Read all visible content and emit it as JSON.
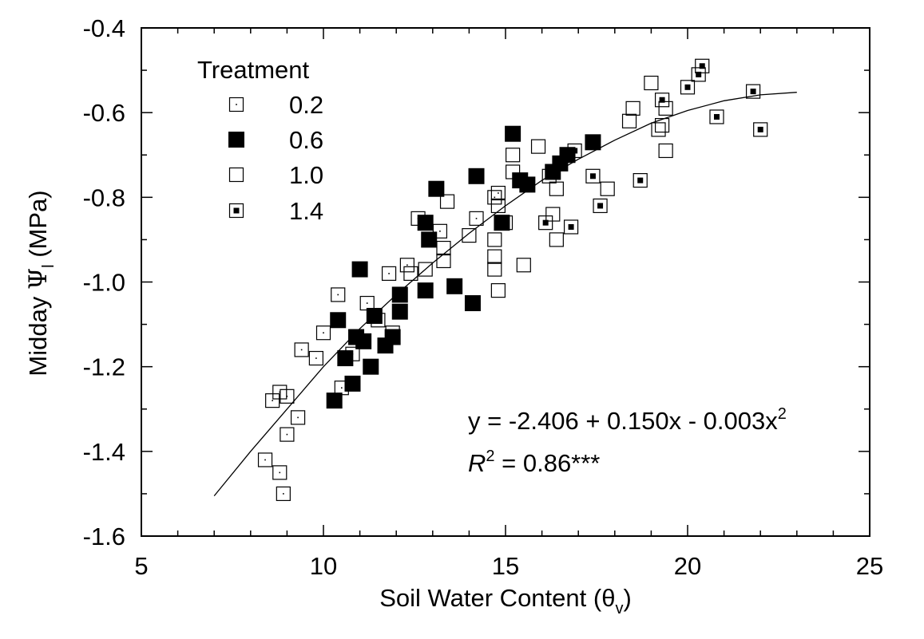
{
  "chart_data": {
    "type": "scatter",
    "xlabel": "Soil Water Content (θv)",
    "xlabel_main": "Soil Water Content (θ",
    "xlabel_sub": "v",
    "xlabel_close": ")",
    "ylabel": "Midday Ψl (MPa)",
    "ylabel_main": "Midday ",
    "ylabel_psi": "Ψ",
    "ylabel_sub": "l",
    "ylabel_unit": " (MPa)",
    "xlim": [
      5,
      25
    ],
    "ylim": [
      -1.6,
      -0.4
    ],
    "x_ticks": [
      5,
      10,
      15,
      20,
      25
    ],
    "x_tick_labels": [
      "5",
      "10",
      "15",
      "20",
      "25"
    ],
    "y_ticks": [
      -1.6,
      -1.4,
      -1.2,
      -1.0,
      -0.8,
      -0.6,
      -0.4
    ],
    "y_tick_labels": [
      "-1.6",
      "-1.4",
      "-1.2",
      "-1.0",
      "-0.8",
      "-0.6",
      "-0.4"
    ],
    "legend_title": "Treatment",
    "legend_position": "top-left",
    "fit": {
      "equation_prefix": "y = -2.406 + 0.150x - 0.003x",
      "equation_sup": "2",
      "r2_letter": "R",
      "r2_sup": "2",
      "r2_value": " = 0.86***",
      "coefficients": [
        -2.406,
        0.15,
        -0.003
      ],
      "x_range": [
        7.0,
        23.0
      ],
      "curve": [
        [
          7.0,
          -1.505
        ],
        [
          8.0,
          -1.4
        ],
        [
          9.0,
          -1.3
        ],
        [
          10.0,
          -1.2
        ],
        [
          11.0,
          -1.11
        ],
        [
          12.0,
          -1.03
        ],
        [
          13.0,
          -0.955
        ],
        [
          14.0,
          -0.885
        ],
        [
          15.0,
          -0.82
        ],
        [
          16.0,
          -0.76
        ],
        [
          17.0,
          -0.71
        ],
        [
          18.0,
          -0.665
        ],
        [
          19.0,
          -0.625
        ],
        [
          20.0,
          -0.595
        ],
        [
          21.0,
          -0.572
        ],
        [
          22.0,
          -0.558
        ],
        [
          23.0,
          -0.552
        ]
      ]
    },
    "series": [
      {
        "name": "0.2",
        "marker": "open-square-dot",
        "points": [
          [
            8.4,
            -1.42
          ],
          [
            8.6,
            -1.28
          ],
          [
            8.8,
            -1.26
          ],
          [
            8.8,
            -1.45
          ],
          [
            8.9,
            -1.5
          ],
          [
            9.0,
            -1.27
          ],
          [
            9.0,
            -1.36
          ],
          [
            9.3,
            -1.32
          ],
          [
            9.4,
            -1.16
          ],
          [
            9.8,
            -1.18
          ],
          [
            10.0,
            -1.12
          ],
          [
            10.4,
            -1.03
          ],
          [
            10.5,
            -1.25
          ],
          [
            10.8,
            -1.17
          ],
          [
            11.2,
            -1.05
          ],
          [
            11.5,
            -1.09
          ],
          [
            11.8,
            -0.98
          ],
          [
            11.9,
            -1.12
          ],
          [
            12.3,
            -0.96
          ],
          [
            12.6,
            -0.85
          ],
          [
            13.2,
            -0.88
          ],
          [
            14.2,
            -0.85
          ],
          [
            14.7,
            -0.8
          ],
          [
            14.8,
            -0.79
          ]
        ]
      },
      {
        "name": "0.6",
        "marker": "filled-square",
        "points": [
          [
            10.3,
            -1.28
          ],
          [
            10.4,
            -1.09
          ],
          [
            10.6,
            -1.18
          ],
          [
            10.8,
            -1.24
          ],
          [
            10.9,
            -1.13
          ],
          [
            11.0,
            -0.97
          ],
          [
            11.1,
            -1.14
          ],
          [
            11.3,
            -1.2
          ],
          [
            11.4,
            -1.08
          ],
          [
            11.7,
            -1.15
          ],
          [
            11.9,
            -1.13
          ],
          [
            12.1,
            -1.03
          ],
          [
            12.1,
            -1.07
          ],
          [
            12.8,
            -0.86
          ],
          [
            12.8,
            -1.02
          ],
          [
            12.9,
            -0.9
          ],
          [
            13.1,
            -0.78
          ],
          [
            13.6,
            -1.01
          ],
          [
            14.1,
            -1.05
          ],
          [
            14.2,
            -0.75
          ],
          [
            14.9,
            -0.86
          ],
          [
            15.2,
            -0.65
          ],
          [
            15.4,
            -0.76
          ],
          [
            15.6,
            -0.77
          ],
          [
            16.3,
            -0.74
          ],
          [
            16.5,
            -0.72
          ],
          [
            16.7,
            -0.7
          ],
          [
            17.4,
            -0.67
          ]
        ]
      },
      {
        "name": "1.0",
        "marker": "open-square",
        "points": [
          [
            12.4,
            -0.98
          ],
          [
            12.8,
            -0.97
          ],
          [
            13.3,
            -0.92
          ],
          [
            13.3,
            -0.95
          ],
          [
            13.4,
            -0.81
          ],
          [
            14.0,
            -0.89
          ],
          [
            14.7,
            -0.9
          ],
          [
            14.7,
            -0.94
          ],
          [
            14.7,
            -0.97
          ],
          [
            14.8,
            -1.02
          ],
          [
            14.8,
            -0.82
          ],
          [
            15.0,
            -0.86
          ],
          [
            15.2,
            -0.7
          ],
          [
            15.2,
            -0.74
          ],
          [
            15.5,
            -0.96
          ],
          [
            15.9,
            -0.68
          ],
          [
            16.2,
            -0.75
          ],
          [
            16.3,
            -0.84
          ],
          [
            16.4,
            -0.9
          ],
          [
            16.4,
            -0.78
          ],
          [
            17.8,
            -0.78
          ],
          [
            18.4,
            -0.62
          ],
          [
            18.5,
            -0.59
          ],
          [
            19.0,
            -0.53
          ],
          [
            19.2,
            -0.64
          ],
          [
            19.3,
            -0.63
          ],
          [
            19.4,
            -0.59
          ],
          [
            19.4,
            -0.69
          ]
        ]
      },
      {
        "name": "1.4",
        "marker": "open-square-filled-center",
        "points": [
          [
            16.1,
            -0.86
          ],
          [
            16.8,
            -0.87
          ],
          [
            16.9,
            -0.69
          ],
          [
            17.4,
            -0.75
          ],
          [
            17.6,
            -0.82
          ],
          [
            18.7,
            -0.76
          ],
          [
            19.3,
            -0.57
          ],
          [
            20.0,
            -0.54
          ],
          [
            20.3,
            -0.51
          ],
          [
            20.4,
            -0.49
          ],
          [
            20.8,
            -0.61
          ],
          [
            21.8,
            -0.55
          ],
          [
            22.0,
            -0.64
          ]
        ]
      }
    ]
  }
}
